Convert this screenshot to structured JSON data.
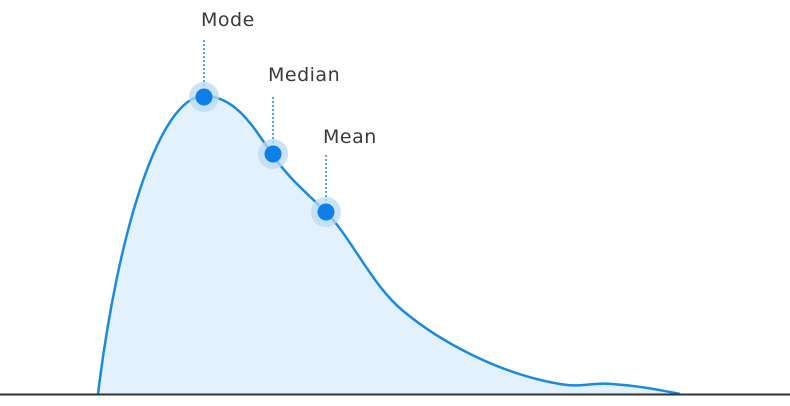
{
  "diagram": {
    "markers": [
      {
        "id": "mode",
        "label": "Mode"
      },
      {
        "id": "median",
        "label": "Median"
      },
      {
        "id": "mean",
        "label": "Mean"
      }
    ],
    "colors": {
      "curve": "#1a8ae0",
      "fill": "#e3f1fc",
      "marker": "#0d7fe8",
      "marker_halo": "#b8d9f5",
      "guide": "#1a8ae0",
      "baseline": "#333333",
      "label": "#3a3a3a"
    }
  }
}
